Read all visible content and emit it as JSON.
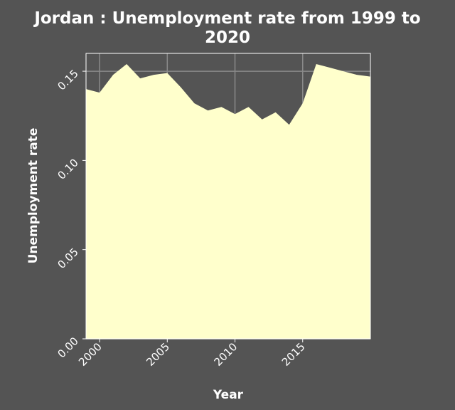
{
  "chart_data": {
    "type": "area",
    "title_line1": "Jordan : Unemployment rate from 1999 to",
    "title_line2": "2020",
    "xlabel": "Year",
    "ylabel": "Unemployment rate",
    "xlim": [
      1999,
      2020
    ],
    "ylim": [
      0,
      0.16
    ],
    "x_ticks": [
      2000,
      2005,
      2010,
      2015
    ],
    "y_ticks": [
      0.0,
      0.05,
      0.1,
      0.15
    ],
    "y_tick_labels": [
      "0.00",
      "0.05",
      "0.10",
      "0.15"
    ],
    "grid": true,
    "colors": {
      "fill": "#ffffcc",
      "background": "#545454",
      "grid": "#8a8a8a",
      "text": "#ffffff"
    },
    "x": [
      1999,
      2000,
      2001,
      2002,
      2003,
      2004,
      2005,
      2006,
      2007,
      2008,
      2009,
      2010,
      2011,
      2012,
      2013,
      2014,
      2015,
      2016,
      2017,
      2018,
      2019,
      2020
    ],
    "values": [
      0.14,
      0.138,
      0.148,
      0.154,
      0.146,
      0.148,
      0.149,
      0.141,
      0.132,
      0.128,
      0.13,
      0.126,
      0.13,
      0.123,
      0.127,
      0.12,
      0.132,
      0.154,
      0.152,
      0.15,
      0.148,
      0.147
    ]
  }
}
